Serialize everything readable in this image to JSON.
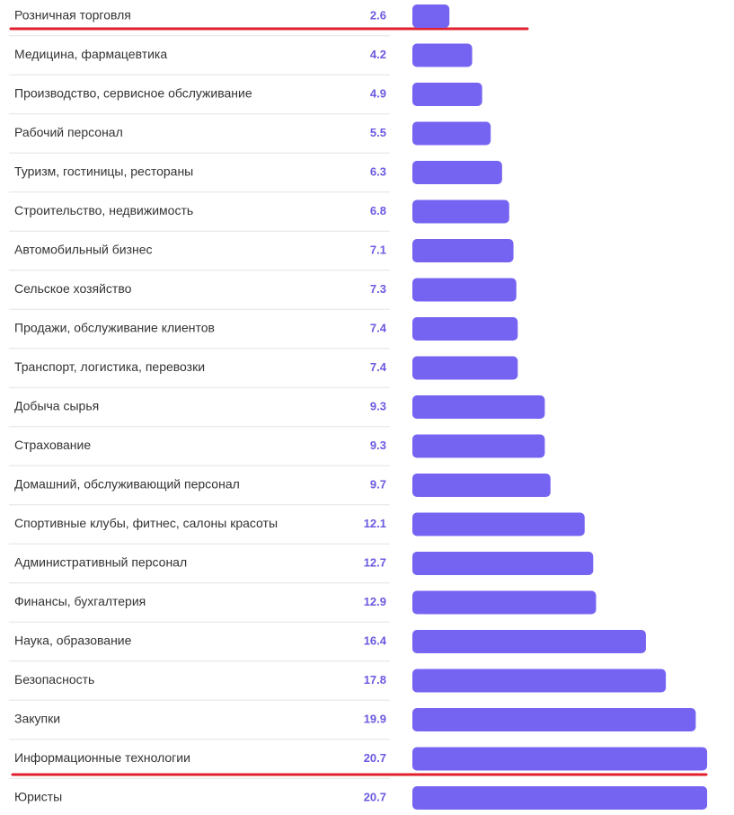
{
  "chart_data": {
    "type": "bar",
    "orientation": "horizontal",
    "color": "#7563f2",
    "categories": [
      "Розничная торговля",
      "Медицина, фармацевтика",
      "Производство, сервисное обслуживание",
      "Рабочий персонал",
      "Туризм, гостиницы, рестораны",
      "Строительство, недвижимость",
      "Автомобильный бизнес",
      "Сельское хозяйство",
      "Продажи, обслуживание клиентов",
      "Транспорт, логистика, перевозки",
      "Добыча сырья",
      "Страхование",
      "Домашний, обслуживающий персонал",
      "Спортивные клубы, фитнес, салоны красоты",
      "Административный персонал",
      "Финансы, бухгалтерия",
      "Наука, образование",
      "Безопасность",
      "Закупки",
      "Информационные технологии",
      "Юристы"
    ],
    "values": [
      2.6,
      4.2,
      4.9,
      5.5,
      6.3,
      6.8,
      7.1,
      7.3,
      7.4,
      7.4,
      9.3,
      9.3,
      9.7,
      12.1,
      12.7,
      12.9,
      16.4,
      17.8,
      19.9,
      20.7,
      20.7
    ]
  }
}
